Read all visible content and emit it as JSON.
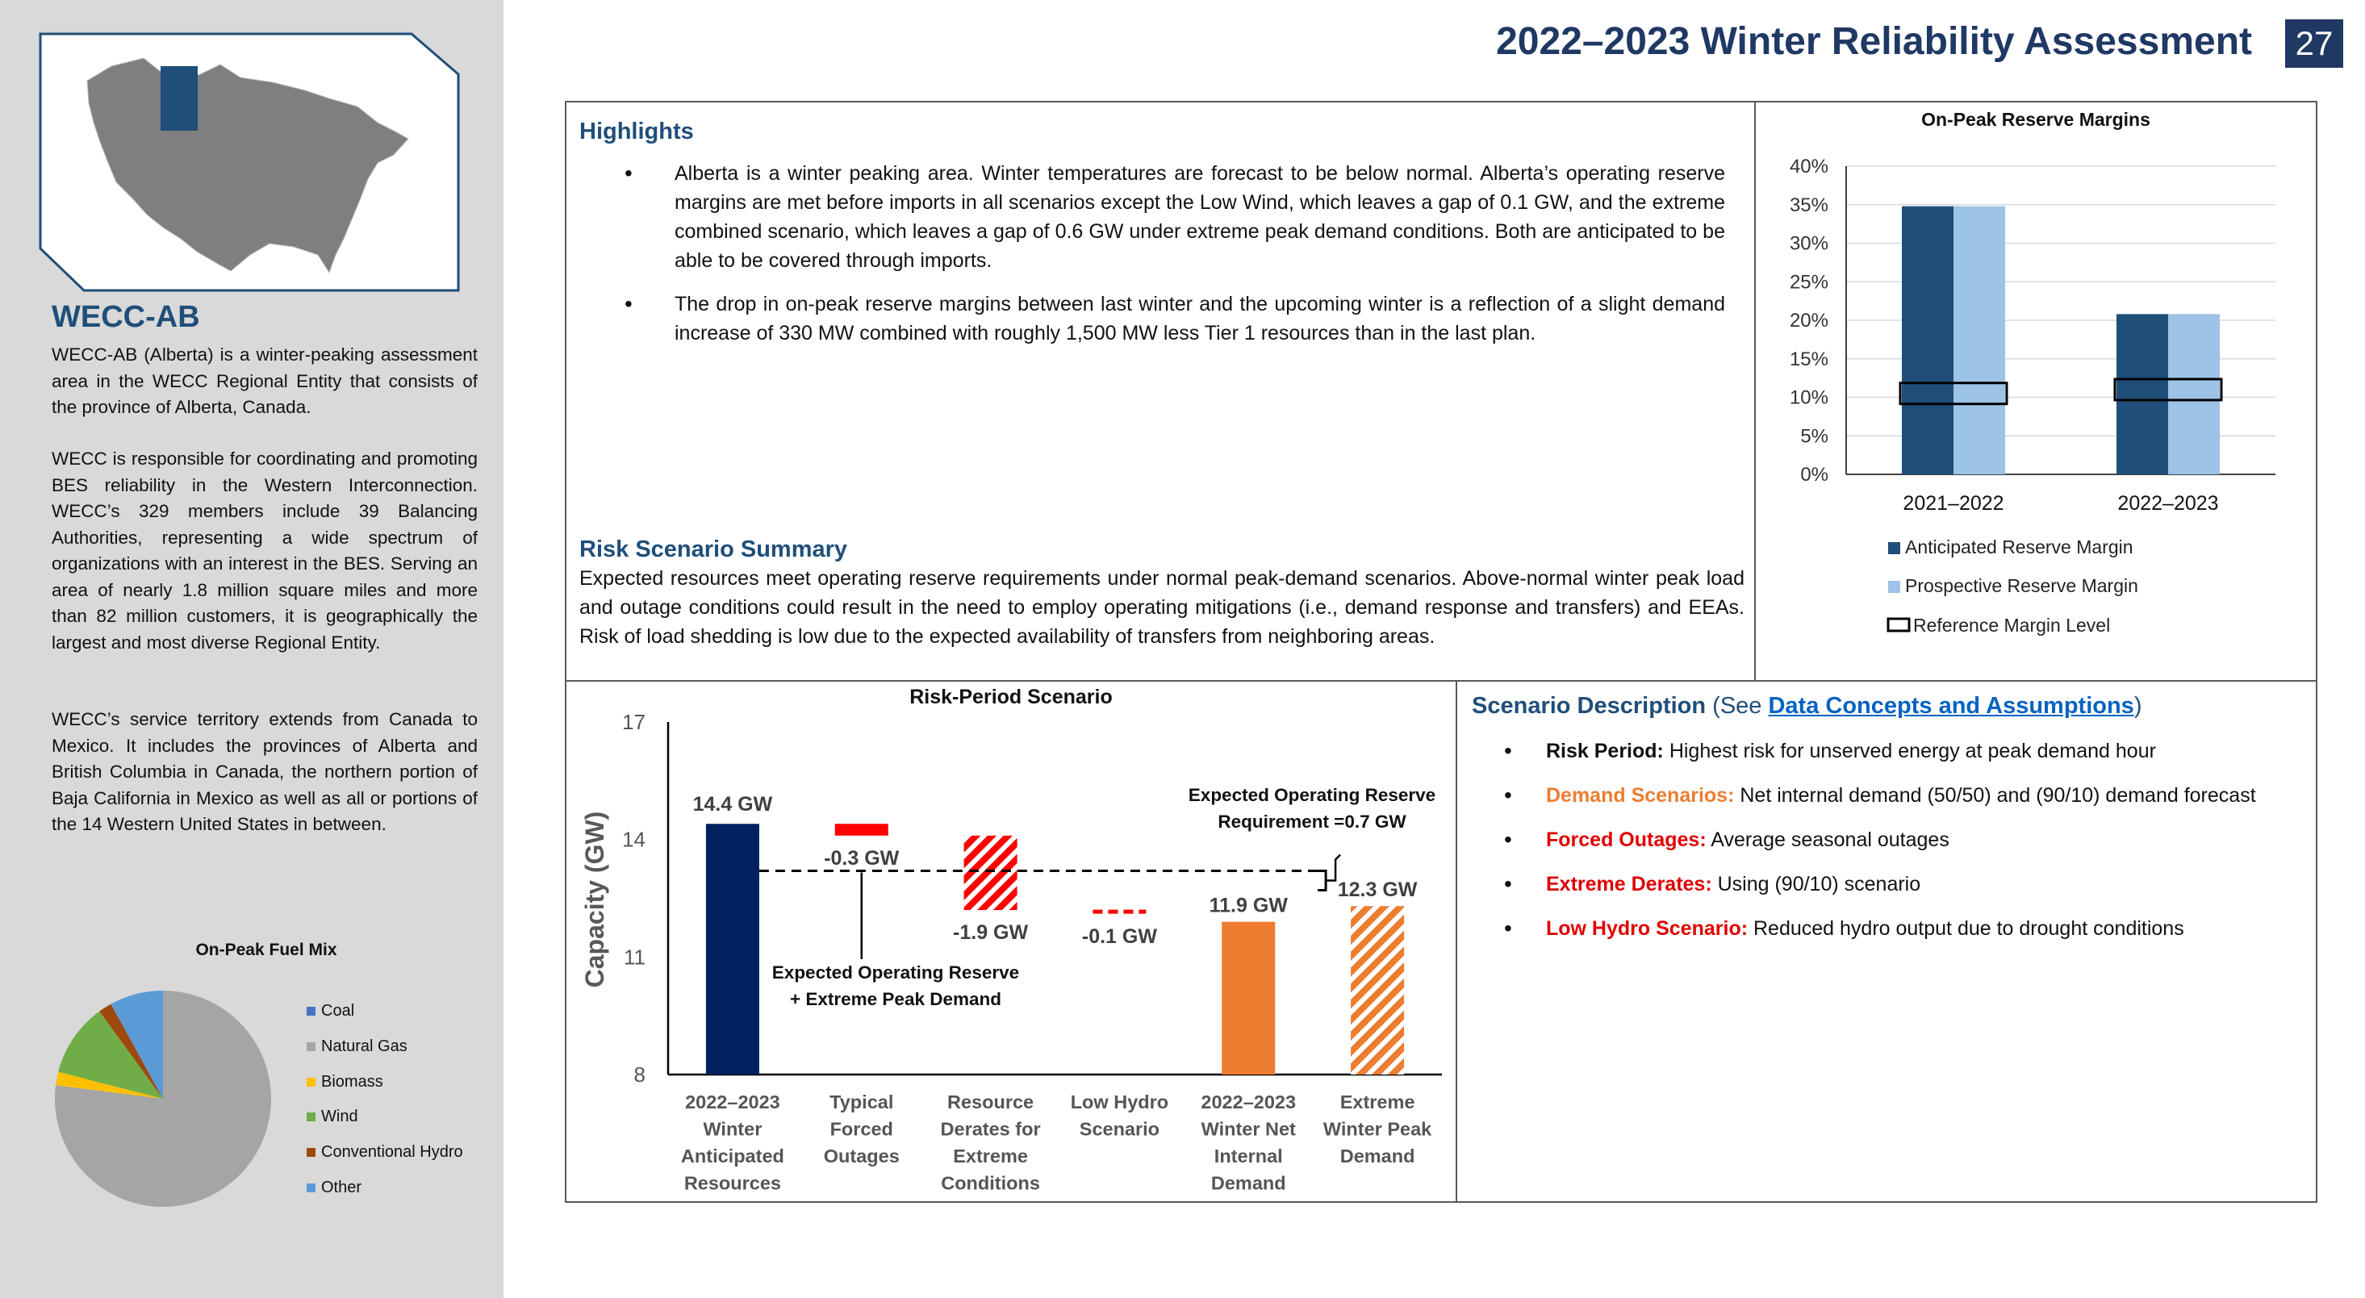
{
  "header": {
    "title": "2022–2023 Winter Reliability Assessment",
    "page_number": "27"
  },
  "sidebar": {
    "area_title": "WECC-AB",
    "paragraphs": [
      "WECC-AB (Alberta) is a winter-peaking assessment area in the WECC Regional Entity that consists of the province of Alberta, Canada.",
      "WECC is responsible for coordinating and promoting BES reliability in the Western Interconnection. WECC’s 329 members include 39 Balancing Authorities, representing a wide spectrum of organizations with an interest in the BES. Serving an area of nearly 1.8 million square miles and more than 82 million customers, it is geographically the largest and most diverse Regional Entity.",
      "WECC’s service territory extends from Canada to Mexico. It includes the provinces of Alberta and British Columbia in Canada, the northern portion of Baja California in Mexico as well as all or portions of the 14 Western United States in between."
    ],
    "fuel_mix": {
      "title": "On-Peak Fuel Mix",
      "slices": [
        {
          "name": "Coal",
          "value": 0,
          "color": "#4472c4"
        },
        {
          "name": "Natural Gas",
          "value": 77,
          "color": "#a5a5a5"
        },
        {
          "name": "Biomass",
          "value": 2,
          "color": "#ffc000"
        },
        {
          "name": "Wind",
          "value": 11,
          "color": "#70ad47"
        },
        {
          "name": "Conventional Hydro",
          "value": 2,
          "color": "#9e480e"
        },
        {
          "name": "Other",
          "value": 8,
          "color": "#5b9bd5"
        }
      ]
    }
  },
  "highlights": {
    "heading": "Highlights",
    "bullets": [
      "Alberta is a winter peaking area. Winter temperatures are forecast to be below normal. Alberta’s operating reserve margins are met before imports in all scenarios except the Low Wind, which leaves a gap of 0.1 GW, and the extreme combined scenario, which leaves a gap of 0.6 GW under extreme peak demand conditions. Both are anticipated to be able to be covered through imports.",
      "The drop in on-peak reserve margins between last winter and the upcoming winter is a reflection of a slight demand increase of 330 MW combined with roughly 1,500 MW less Tier 1 resources than in the last plan."
    ],
    "risk_heading": "Risk Scenario Summary",
    "risk_text": "Expected resources meet operating reserve requirements under normal peak-demand scenarios. Above-normal winter peak load and outage conditions could result in the need to employ operating mitigations (i.e., demand response and transfers) and EEAs. Risk of load shedding is low due to the expected availability of transfers from neighboring areas."
  },
  "scenario": {
    "heading": "Scenario Description",
    "see_open": "(See ",
    "link": "Data Concepts and Assumptions",
    "see_close": ")",
    "items": [
      {
        "label": "Risk Period:",
        "text": " Highest risk for unserved energy at peak demand hour",
        "color": "dark"
      },
      {
        "label": "Demand Scenarios:",
        "text": " Net internal demand (50/50) and (90/10) demand forecast",
        "color": "orange"
      },
      {
        "label": "Forced Outages:",
        "text": " Average seasonal outages",
        "color": "red"
      },
      {
        "label": "Extreme Derates:",
        "text": " Using (90/10) scenario",
        "color": "red"
      },
      {
        "label": "Low Hydro Scenario:",
        "text": " Reduced hydro output due to drought conditions",
        "color": "red"
      }
    ]
  },
  "chart_data": [
    {
      "type": "bar",
      "title": "On-Peak Reserve Margins",
      "categories": [
        "2021–2022",
        "2022–2023"
      ],
      "series": [
        {
          "name": "Anticipated Reserve Margin",
          "values": [
            34.8,
            20.8
          ],
          "color": "#1f4e79"
        },
        {
          "name": "Prospective Reserve Margin",
          "values": [
            34.8,
            20.8
          ],
          "color": "#9dc3e6"
        }
      ],
      "reference": {
        "name": "Reference Margin Level",
        "values": [
          10.5,
          11.0
        ]
      },
      "ylim": [
        0,
        40
      ],
      "yticks": [
        "0%",
        "5%",
        "10%",
        "15%",
        "20%",
        "25%",
        "30%",
        "35%",
        "40%"
      ],
      "legend": "bottom"
    },
    {
      "type": "waterfall",
      "title": "Risk-Period Scenario",
      "ylabel": "Capacity (GW)",
      "ylim": [
        8,
        17
      ],
      "yticks": [
        "17",
        "14",
        "11",
        "8"
      ],
      "categories": [
        [
          "2022–2023",
          "Winter",
          "Anticipated",
          "Resources"
        ],
        [
          "Typical",
          "Forced",
          "Outages"
        ],
        [
          "Resource",
          "Derates for",
          "Extreme",
          "Conditions"
        ],
        [
          "Low Hydro",
          "Scenario"
        ],
        [
          "2022–2023",
          "Winter Net",
          "Internal",
          "Demand"
        ],
        [
          "Extreme",
          "Winter Peak",
          "Demand"
        ]
      ],
      "bars": [
        {
          "start": 8,
          "end": 14.4,
          "label": "14.4 GW",
          "style": "navy"
        },
        {
          "start": 14.4,
          "end": 14.1,
          "label": "-0.3 GW",
          "style": "red"
        },
        {
          "start": 14.1,
          "end": 12.2,
          "label": "-1.9 GW",
          "style": "redhatch"
        },
        {
          "start": 12.2,
          "end": 12.1,
          "label": "-0.1 GW",
          "style": "reddash"
        },
        {
          "start": 8,
          "end": 11.9,
          "label": "11.9 GW",
          "style": "orange"
        },
        {
          "start": 8,
          "end": 12.3,
          "label": "12.3 GW",
          "style": "orangehatch"
        }
      ],
      "requirement_level": 13.2,
      "annotations": {
        "requirement": [
          "Expected Operating Reserve",
          "Requirement =0.7 GW"
        ],
        "reserve_demand": [
          "Expected Operating Reserve",
          "+ Extreme Peak Demand"
        ]
      }
    }
  ]
}
